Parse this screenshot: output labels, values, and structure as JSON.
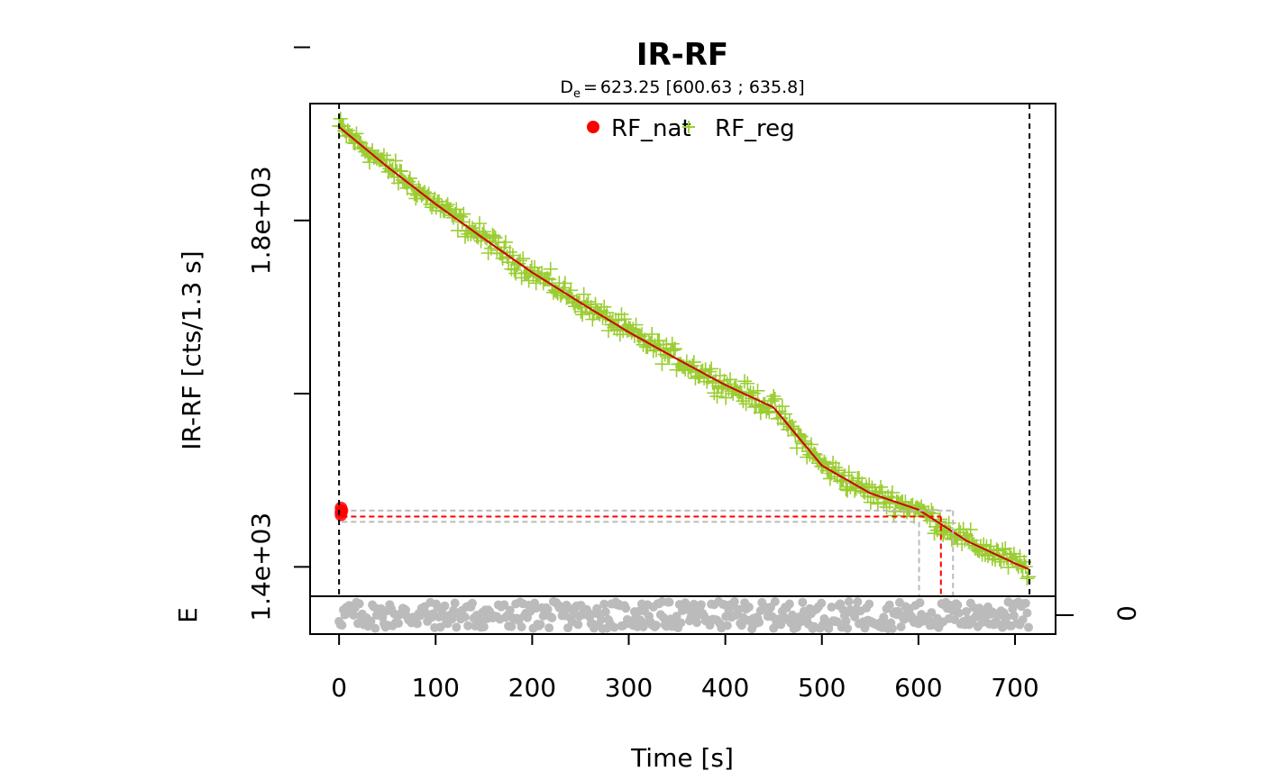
{
  "chart_data": {
    "type": "scatter",
    "title": "IR-RF",
    "subtitle": {
      "symbol": "D",
      "subscript": "e",
      "equals": "=",
      "value_text": "623.25 [600.63 ; 635.8]"
    },
    "de": {
      "value": 623.25,
      "lower": 600.63,
      "upper": 635.8
    },
    "xlabel": "Time [s]",
    "ylabel": "IR-RF [cts/1.3 s]",
    "residual_label": "E",
    "residual_tick_label": "0",
    "xlim": [
      -30,
      742
    ],
    "ylim": [
      1366,
      1935
    ],
    "x_ticks": [
      0,
      100,
      200,
      300,
      400,
      500,
      600,
      700
    ],
    "x_tick_labels": [
      "0",
      "100",
      "200",
      "300",
      "400",
      "500",
      "600",
      "700"
    ],
    "y_ticks": [
      1400,
      1600,
      1800,
      2000
    ],
    "y_tick_labels": [
      {
        "value": 1400,
        "label": "1.4e+03"
      },
      {
        "value": 1800,
        "label": "1.8e+03"
      }
    ],
    "vertical_lines": [
      0,
      715
    ],
    "legend": {
      "position": "top",
      "items": [
        {
          "label": "RF_nat",
          "symbol": "dot",
          "color": "#ff0000"
        },
        {
          "label": "RF_reg",
          "symbol": "plus",
          "color": "#9acd32"
        }
      ]
    },
    "fit_curve": {
      "color": "#cc0000",
      "x_range": [
        0,
        715
      ],
      "model": "exponential decay",
      "y_at_0": 1908,
      "y_at_100": 1819,
      "y_at_200": 1740,
      "y_at_300": 1671,
      "y_at_400": 1610,
      "y_at_500": 1517,
      "y_at_623": 1456,
      "y_at_715": 1397
    },
    "series": [
      {
        "name": "RF_reg",
        "color": "#9acd32",
        "marker": "plus",
        "points_reference": [
          [
            0,
            1908
          ],
          [
            50,
            1862
          ],
          [
            100,
            1819
          ],
          [
            150,
            1779
          ],
          [
            200,
            1740
          ],
          [
            250,
            1705
          ],
          [
            300,
            1671
          ],
          [
            350,
            1640
          ],
          [
            400,
            1610
          ],
          [
            450,
            1584
          ],
          [
            500,
            1517
          ],
          [
            550,
            1485
          ],
          [
            600,
            1466
          ],
          [
            650,
            1430
          ],
          [
            700,
            1404
          ],
          [
            715,
            1397
          ]
        ],
        "noise": 8
      },
      {
        "name": "RF_nat",
        "color": "#ff0000",
        "marker": "dot",
        "points": [
          [
            2,
            1463
          ],
          [
            2,
            1468
          ],
          [
            2,
            1460
          ],
          [
            3,
            1465
          ]
        ]
      }
    ],
    "de_lines": {
      "value_color": "#ff0000",
      "ci_color": "#bbbbbb",
      "y_mean": 1458,
      "y_ci_low": 1452,
      "y_ci_high": 1465
    },
    "residuals": {
      "color": "#bbbbbb",
      "marker": "dot",
      "range": [
        -1,
        1
      ]
    },
    "grid": false
  }
}
